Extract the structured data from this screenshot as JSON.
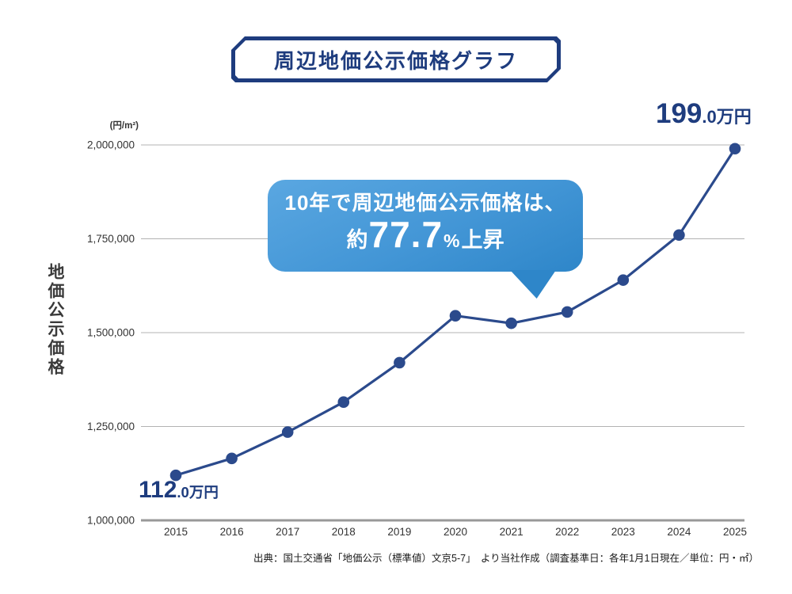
{
  "title": "周辺地価公示価格グラフ",
  "y_axis": {
    "unit": "(円/m²)",
    "title": "地価公示価格"
  },
  "chart_data": {
    "type": "line",
    "title": "周辺地価公示価格グラフ",
    "x": [
      2015,
      2016,
      2017,
      2018,
      2019,
      2020,
      2021,
      2022,
      2023,
      2024,
      2025
    ],
    "values": [
      1120000,
      1165000,
      1235000,
      1315000,
      1420000,
      1545000,
      1525000,
      1555000,
      1640000,
      1760000,
      1990000
    ],
    "ylabel": "地価公示価格",
    "y_unit": "(円/m²)",
    "ylim": [
      1000000,
      2000000
    ],
    "yticks": [
      2000000,
      1750000,
      1500000,
      1250000,
      1000000
    ],
    "grid": true,
    "legend": "none",
    "start_label": "112.0万円",
    "end_label": "199.0万円",
    "annotation": "10年で周辺地価公示価格は、約77.7%上昇"
  },
  "callout": {
    "line1": "10年で周辺地価公示価格は、",
    "prefix": "約",
    "value": "77.7",
    "percent": "%",
    "suffix": "上昇"
  },
  "labels": {
    "start_big": "112",
    "start_small": ".0万円",
    "end_big": "199",
    "end_small": ".0万円"
  },
  "source": "出典：国土交通省「地価公示（標準値）文京5-7」　より当社作成（調査基準日：各年1月1日現在／単位：円・㎡）",
  "colors": {
    "navy_dark": "#1e3c7e",
    "line": "#2b4a8c",
    "bubble_top": "#5aa7e1",
    "bubble_bottom": "#2e86c9",
    "grid": "#b3b3b3",
    "axis": "#999999",
    "tick_text": "#333333"
  }
}
